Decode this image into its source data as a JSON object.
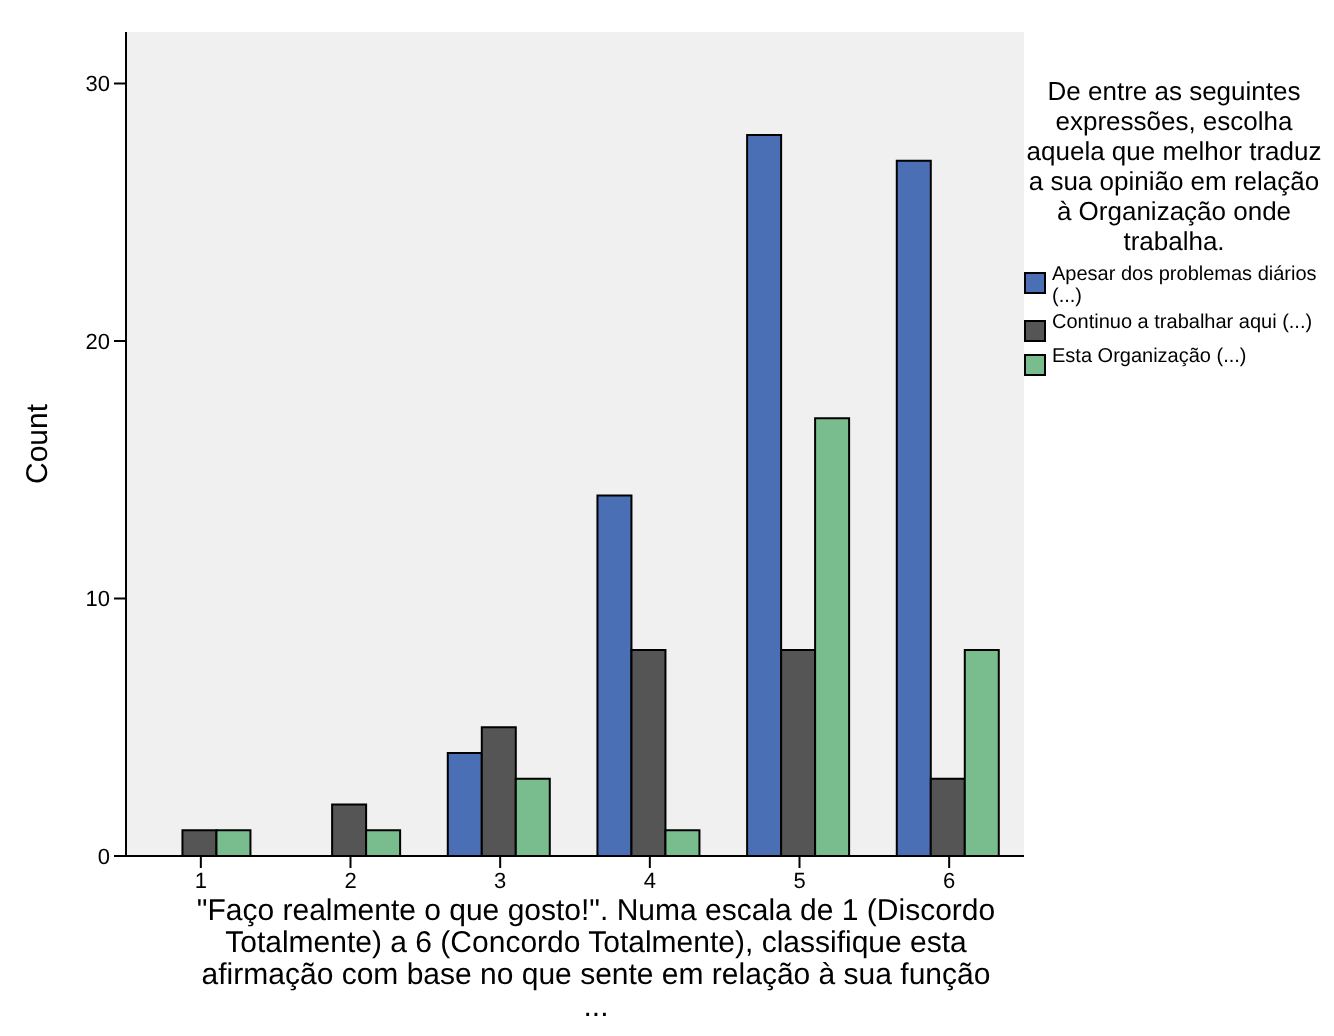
{
  "chart_data": {
    "type": "bar",
    "xlabel": "\"Faço realmente o que gosto!\". Numa escala de 1 (Discordo Totalmente) a 6 (Concordo Totalmente), classifique esta afirmação com base no que sente em relação à sua função ...",
    "ylabel": "Count",
    "legend_title": "De entre as seguintes expressões, escolha aquela que melhor traduz a sua opinião em relação à Organização onde trabalha.",
    "categories": [
      "1",
      "2",
      "3",
      "4",
      "5",
      "6"
    ],
    "series": [
      {
        "name": "Apesar dos problemas diários (...)",
        "color": "#4a6fb5",
        "values": [
          0,
          0,
          4,
          14,
          28,
          27
        ]
      },
      {
        "name": "Continuo a trabalhar aqui (...)",
        "color": "#555555",
        "values": [
          1,
          2,
          5,
          8,
          8,
          3
        ]
      },
      {
        "name": "Esta Organização (...)",
        "color": "#79bd8f",
        "values": [
          1,
          1,
          3,
          1,
          17,
          8
        ]
      }
    ],
    "ylim": [
      0,
      32
    ],
    "yticks": [
      0,
      10,
      20,
      30
    ],
    "grid": false,
    "legend": "right"
  }
}
